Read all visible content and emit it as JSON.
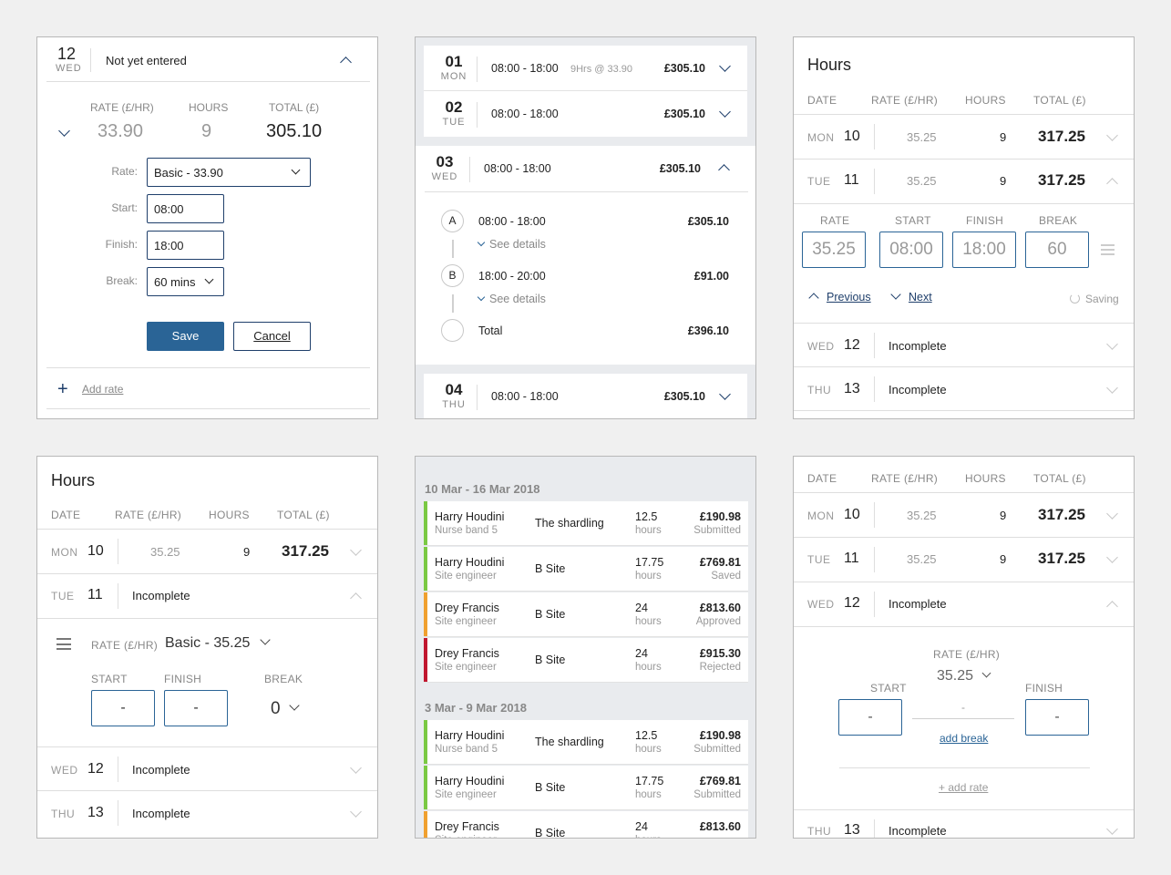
{
  "panel1": {
    "day_num": "12",
    "day_dow": "WED",
    "status": "Not yet entered",
    "col_rate": "RATE (£/HR)",
    "col_hours": "HOURS",
    "col_total": "TOTAL (£)",
    "rate": "33.90",
    "hours": "9",
    "total": "305.10",
    "rate_label": "Rate:",
    "rate_value": "Basic - 33.90",
    "start_label": "Start:",
    "start_value": "08:00",
    "finish_label": "Finish:",
    "finish_value": "18:00",
    "break_label": "Break:",
    "break_value": "60 mins",
    "save_label": "Save",
    "cancel_label": "Cancel",
    "add_rate_label": "Add rate"
  },
  "panel2": {
    "rows": [
      {
        "num": "01",
        "dow": "MON",
        "time": "08:00 - 18:00",
        "note": "9Hrs @ 33.90",
        "amount": "£305.10"
      },
      {
        "num": "02",
        "dow": "TUE",
        "time": "08:00 - 18:00",
        "amount": "£305.10"
      },
      {
        "num": "03",
        "dow": "WED",
        "time": "08:00 - 18:00",
        "amount": "£305.10"
      },
      {
        "num": "04",
        "dow": "THU",
        "time": "08:00 - 18:00",
        "amount": "£305.10"
      }
    ],
    "shifts": [
      {
        "letter": "A",
        "time": "08:00 - 18:00",
        "amount": "£305.10",
        "details": "See details"
      },
      {
        "letter": "B",
        "time": "18:00 - 20:00",
        "amount": "£91.00",
        "details": "See details"
      }
    ],
    "total_label": "Total",
    "total_amount": "£396.10"
  },
  "panel3": {
    "title": "Hours",
    "col_date": "DATE",
    "col_rate": "RATE (£/HR)",
    "col_hours": "HOURS",
    "col_total": "TOTAL (£)",
    "rows": [
      {
        "dow": "MON",
        "num": "10",
        "rate": "35.25",
        "hours": "9",
        "total": "317.25"
      },
      {
        "dow": "TUE",
        "num": "11",
        "rate": "35.25",
        "hours": "9",
        "total": "317.25"
      }
    ],
    "edit": {
      "rate_label": "RATE",
      "rate_value": "35.25",
      "start_label": "START",
      "start_value": "08:00",
      "finish_label": "FINISH",
      "finish_value": "18:00",
      "break_label": "BREAK",
      "break_value": "60"
    },
    "previous_label": "Previous",
    "next_label": "Next",
    "saving_label": "Saving",
    "incomplete_rows": [
      {
        "dow": "WED",
        "num": "12",
        "status": "Incomplete"
      },
      {
        "dow": "THU",
        "num": "13",
        "status": "Incomplete"
      }
    ]
  },
  "panel4": {
    "title": "Hours",
    "col_date": "DATE",
    "col_rate": "RATE (£/HR)",
    "col_hours": "HOURS",
    "col_total": "TOTAL (£)",
    "row_mon": {
      "dow": "MON",
      "num": "10",
      "rate": "35.25",
      "hours": "9",
      "total": "317.25"
    },
    "row_tue": {
      "dow": "TUE",
      "num": "11",
      "status": "Incomplete"
    },
    "rate_label": "RATE (£/HR)",
    "rate_value": "Basic - 35.25",
    "start_label": "START",
    "start_value": "-",
    "finish_label": "FINISH",
    "finish_value": "-",
    "break_label": "BREAK",
    "break_value": "0",
    "incomplete_rows": [
      {
        "dow": "WED",
        "num": "12",
        "status": "Incomplete"
      },
      {
        "dow": "THU",
        "num": "13",
        "status": "Incomplete"
      }
    ]
  },
  "panel5": {
    "weeks": [
      {
        "label": "10 Mar - 16 Mar 2018",
        "rows": [
          {
            "name": "Harry Houdini",
            "role": "Nurse band 5",
            "site": "The shardling",
            "hours": "12.5",
            "unit": "hours",
            "amount": "£190.98",
            "status": "Submitted",
            "color": "#7ac943"
          },
          {
            "name": "Harry Houdini",
            "role": "Site engineer",
            "site": "B Site",
            "hours": "17.75",
            "unit": "hours",
            "amount": "£769.81",
            "status": "Saved",
            "color": "#7ac943"
          },
          {
            "name": "Drey Francis",
            "role": "Site engineer",
            "site": "B Site",
            "hours": "24",
            "unit": "hours",
            "amount": "£813.60",
            "status": "Approved",
            "color": "#f0a030"
          },
          {
            "name": "Drey Francis",
            "role": "Site engineer",
            "site": "B Site",
            "hours": "24",
            "unit": "hours",
            "amount": "£915.30",
            "status": "Rejected",
            "color": "#c0172f"
          }
        ]
      },
      {
        "label": "3 Mar - 9 Mar 2018",
        "rows": [
          {
            "name": "Harry Houdini",
            "role": "Nurse band 5",
            "site": "The shardling",
            "hours": "12.5",
            "unit": "hours",
            "amount": "£190.98",
            "status": "Submitted",
            "color": "#7ac943"
          },
          {
            "name": "Harry Houdini",
            "role": "Site engineer",
            "site": "B Site",
            "hours": "17.75",
            "unit": "hours",
            "amount": "£769.81",
            "status": "Submitted",
            "color": "#7ac943"
          },
          {
            "name": "Drey Francis",
            "role": "Site engineer",
            "site": "B Site",
            "hours": "24",
            "unit": "hours",
            "amount": "£813.60",
            "status": "",
            "color": "#f0a030"
          }
        ]
      }
    ]
  },
  "panel6": {
    "col_date": "DATE",
    "col_rate": "RATE (£/HR)",
    "col_hours": "HOURS",
    "col_total": "TOTAL (£)",
    "rows": [
      {
        "dow": "MON",
        "num": "10",
        "rate": "35.25",
        "hours": "9",
        "total": "317.25"
      },
      {
        "dow": "TUE",
        "num": "11",
        "rate": "35.25",
        "hours": "9",
        "total": "317.25"
      }
    ],
    "row_wed": {
      "dow": "WED",
      "num": "12",
      "status": "Incomplete"
    },
    "rate_label": "RATE (£/HR)",
    "rate_value": "35.25",
    "start_label": "START",
    "start_value": "-",
    "finish_label": "FINISH",
    "finish_value": "-",
    "break_value": "-",
    "add_break_label": "add break",
    "add_rate_label": "+ add rate",
    "row_thu": {
      "dow": "THU",
      "num": "13",
      "status": "Incomplete"
    }
  }
}
